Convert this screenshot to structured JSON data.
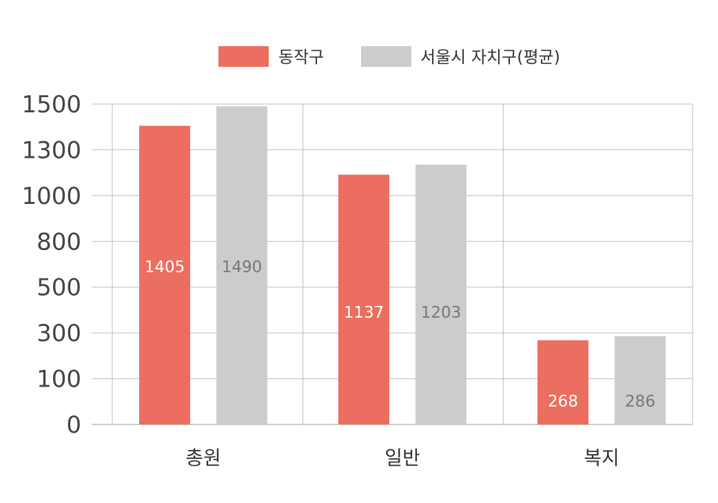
{
  "chart_data": {
    "type": "bar",
    "categories": [
      "총원",
      "일반",
      "복지"
    ],
    "series": [
      {
        "name": "동작구",
        "values": [
          1405,
          1137,
          268
        ],
        "color": "#EB6E60",
        "label_color": "#FFFFFF"
      },
      {
        "name": "서울시 자치구(평균)",
        "values": [
          1490,
          1203,
          286
        ],
        "color": "#CCCCCC",
        "label_color": "#777777"
      }
    ],
    "ytick_labels": [
      "0",
      "100",
      "300",
      "500",
      "800",
      "1000",
      "1300",
      "1500"
    ],
    "legend_position": "top-center",
    "grid": true,
    "title": "",
    "xlabel": "",
    "ylabel": ""
  }
}
